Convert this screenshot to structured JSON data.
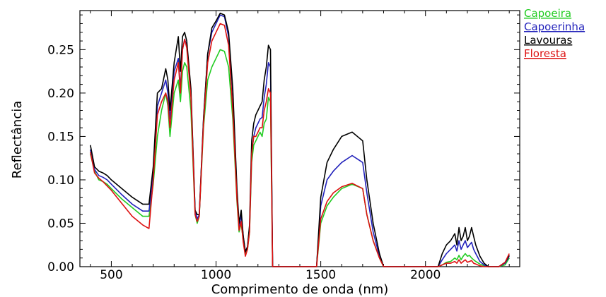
{
  "chart_data": {
    "type": "line",
    "title": "",
    "xlabel": "Comprimento de onda (nm)",
    "ylabel": "Reflectância",
    "xlim": [
      350,
      2450
    ],
    "ylim": [
      0.0,
      0.295
    ],
    "xticks": [
      500,
      1000,
      1500,
      2000
    ],
    "xtick_labels": [
      "500",
      "1000",
      "1500",
      "2000"
    ],
    "yticks": [
      0.0,
      0.05,
      0.1,
      0.15,
      0.2,
      0.25
    ],
    "ytick_labels": [
      "0.00",
      "0.05",
      "0.10",
      "0.15",
      "0.20",
      "0.25"
    ],
    "grid": false,
    "legend_position": "outside-top-right",
    "x": [
      400,
      420,
      440,
      460,
      480,
      500,
      550,
      600,
      650,
      680,
      700,
      720,
      740,
      760,
      770,
      780,
      800,
      820,
      830,
      840,
      850,
      860,
      880,
      900,
      910,
      920,
      940,
      960,
      980,
      1000,
      1020,
      1040,
      1060,
      1080,
      1100,
      1110,
      1120,
      1130,
      1140,
      1150,
      1160,
      1170,
      1180,
      1190,
      1200,
      1210,
      1220,
      1230,
      1240,
      1250,
      1260,
      1270,
      1290,
      1400,
      1480,
      1500,
      1530,
      1560,
      1600,
      1650,
      1700,
      1720,
      1750,
      1780,
      1800,
      1900,
      2000,
      2030,
      2060,
      2080,
      2100,
      2120,
      2140,
      2150,
      2160,
      2170,
      2180,
      2190,
      2200,
      2210,
      2220,
      2230,
      2240,
      2260,
      2280,
      2300,
      2350,
      2380,
      2400
    ],
    "series": [
      {
        "name": "Capoeira",
        "color": "#22cc22",
        "values": [
          0.13,
          0.11,
          0.1,
          0.098,
          0.095,
          0.09,
          0.078,
          0.068,
          0.058,
          0.058,
          0.095,
          0.15,
          0.18,
          0.2,
          0.185,
          0.15,
          0.2,
          0.215,
          0.19,
          0.225,
          0.235,
          0.23,
          0.18,
          0.06,
          0.05,
          0.058,
          0.16,
          0.215,
          0.23,
          0.24,
          0.25,
          0.248,
          0.23,
          0.17,
          0.075,
          0.04,
          0.05,
          0.03,
          0.015,
          0.02,
          0.04,
          0.12,
          0.14,
          0.145,
          0.15,
          0.155,
          0.15,
          0.165,
          0.17,
          0.195,
          0.19,
          0.0,
          0.0,
          0.0,
          0.0,
          0.05,
          0.07,
          0.08,
          0.09,
          0.095,
          0.09,
          0.06,
          0.03,
          0.01,
          0.0,
          0.0,
          0.0,
          0.0,
          0.0,
          0.002,
          0.005,
          0.006,
          0.01,
          0.008,
          0.013,
          0.008,
          0.012,
          0.015,
          0.012,
          0.013,
          0.01,
          0.008,
          0.006,
          0.003,
          0.001,
          0.0,
          0.0,
          0.002,
          0.01
        ]
      },
      {
        "name": "Capoerinha",
        "color": "#2222bb",
        "values": [
          0.135,
          0.112,
          0.105,
          0.103,
          0.1,
          0.095,
          0.083,
          0.072,
          0.064,
          0.064,
          0.108,
          0.185,
          0.2,
          0.215,
          0.2,
          0.17,
          0.225,
          0.24,
          0.205,
          0.25,
          0.262,
          0.255,
          0.2,
          0.065,
          0.055,
          0.06,
          0.17,
          0.245,
          0.27,
          0.28,
          0.29,
          0.288,
          0.265,
          0.2,
          0.085,
          0.045,
          0.06,
          0.035,
          0.017,
          0.023,
          0.045,
          0.13,
          0.15,
          0.16,
          0.165,
          0.17,
          0.172,
          0.195,
          0.21,
          0.235,
          0.23,
          0.0,
          0.0,
          0.0,
          0.0,
          0.07,
          0.1,
          0.11,
          0.12,
          0.128,
          0.12,
          0.085,
          0.04,
          0.012,
          0.0,
          0.0,
          0.0,
          0.0,
          0.0,
          0.008,
          0.015,
          0.02,
          0.025,
          0.018,
          0.03,
          0.02,
          0.025,
          0.03,
          0.022,
          0.025,
          0.028,
          0.02,
          0.015,
          0.006,
          0.002,
          0.0,
          0.0,
          0.004,
          0.012
        ]
      },
      {
        "name": "Lavouras",
        "color": "#000000",
        "values": [
          0.14,
          0.115,
          0.11,
          0.108,
          0.105,
          0.1,
          0.09,
          0.08,
          0.072,
          0.072,
          0.115,
          0.2,
          0.205,
          0.228,
          0.215,
          0.18,
          0.235,
          0.265,
          0.225,
          0.265,
          0.27,
          0.26,
          0.205,
          0.065,
          0.06,
          0.06,
          0.17,
          0.245,
          0.275,
          0.283,
          0.292,
          0.29,
          0.27,
          0.205,
          0.09,
          0.05,
          0.065,
          0.035,
          0.017,
          0.023,
          0.048,
          0.145,
          0.165,
          0.175,
          0.18,
          0.185,
          0.19,
          0.215,
          0.23,
          0.255,
          0.25,
          0.0,
          0.0,
          0.0,
          0.0,
          0.08,
          0.12,
          0.135,
          0.15,
          0.155,
          0.145,
          0.1,
          0.05,
          0.015,
          0.0,
          0.0,
          0.0,
          0.0,
          0.0,
          0.015,
          0.025,
          0.03,
          0.038,
          0.025,
          0.045,
          0.03,
          0.035,
          0.045,
          0.03,
          0.035,
          0.045,
          0.035,
          0.025,
          0.012,
          0.004,
          0.0,
          0.0,
          0.005,
          0.013
        ]
      },
      {
        "name": "Floresta",
        "color": "#dd1111",
        "values": [
          0.132,
          0.108,
          0.102,
          0.098,
          0.093,
          0.088,
          0.073,
          0.058,
          0.048,
          0.044,
          0.1,
          0.175,
          0.19,
          0.2,
          0.19,
          0.16,
          0.215,
          0.235,
          0.2,
          0.25,
          0.262,
          0.252,
          0.195,
          0.06,
          0.052,
          0.058,
          0.165,
          0.235,
          0.26,
          0.27,
          0.28,
          0.278,
          0.255,
          0.18,
          0.078,
          0.042,
          0.052,
          0.028,
          0.012,
          0.02,
          0.04,
          0.13,
          0.15,
          0.15,
          0.155,
          0.16,
          0.16,
          0.18,
          0.19,
          0.205,
          0.2,
          0.0,
          0.0,
          0.0,
          0.0,
          0.055,
          0.075,
          0.085,
          0.092,
          0.096,
          0.09,
          0.06,
          0.03,
          0.01,
          0.0,
          0.0,
          0.0,
          0.0,
          0.0,
          0.002,
          0.004,
          0.004,
          0.006,
          0.004,
          0.008,
          0.004,
          0.006,
          0.008,
          0.005,
          0.006,
          0.007,
          0.004,
          0.003,
          0.001,
          0.0,
          0.0,
          0.0,
          0.005,
          0.015
        ]
      }
    ]
  }
}
